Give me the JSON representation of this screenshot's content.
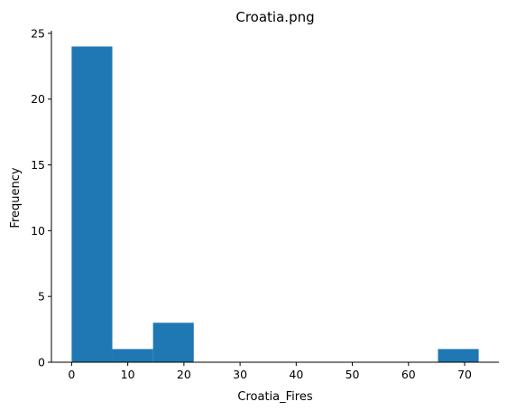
{
  "chart_data": {
    "type": "bar",
    "title": "Croatia.png",
    "xlabel": "Croatia_Fires",
    "ylabel": "Frequency",
    "bins": [
      {
        "x0": 0.0,
        "x1": 7.25,
        "count": 24
      },
      {
        "x0": 7.25,
        "x1": 14.5,
        "count": 1
      },
      {
        "x0": 14.5,
        "x1": 21.75,
        "count": 3
      },
      {
        "x0": 21.75,
        "x1": 29.0,
        "count": 0
      },
      {
        "x0": 29.0,
        "x1": 36.25,
        "count": 0
      },
      {
        "x0": 36.25,
        "x1": 43.5,
        "count": 0
      },
      {
        "x0": 43.5,
        "x1": 50.75,
        "count": 0
      },
      {
        "x0": 50.75,
        "x1": 58.0,
        "count": 0
      },
      {
        "x0": 58.0,
        "x1": 65.25,
        "count": 0
      },
      {
        "x0": 65.25,
        "x1": 72.5,
        "count": 1
      }
    ],
    "xticks": [
      0,
      10,
      20,
      30,
      40,
      50,
      60,
      70
    ],
    "yticks": [
      0,
      5,
      10,
      15,
      20,
      25
    ],
    "xlim": [
      -3.6,
      76.1
    ],
    "ylim": [
      0,
      25.2
    ],
    "bar_color": "#1f77b4",
    "grid": false
  }
}
